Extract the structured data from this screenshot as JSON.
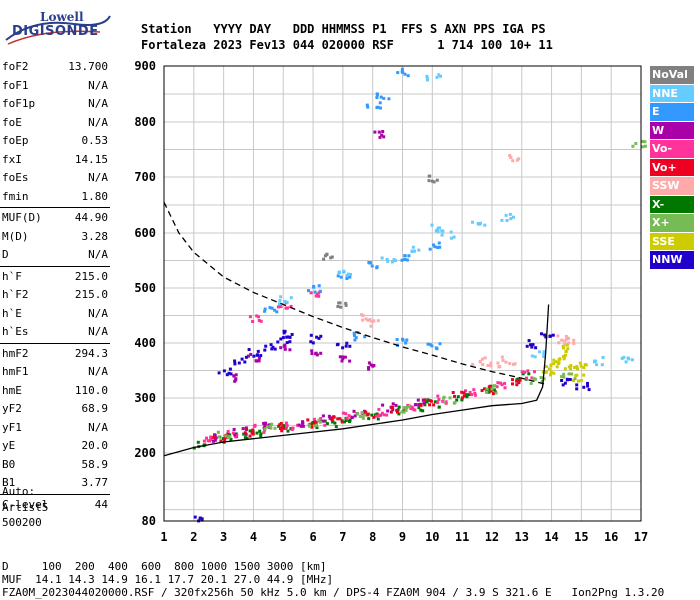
{
  "logo": {
    "line1": "Lowell",
    "line2": "DIGISONDE"
  },
  "header": {
    "line1": "Station   YYYY DAY   DDD HHMMSS P1  FFS S AXN PPS IGA PS",
    "line2": "Fortaleza 2023 Fev13 044 020000 RSF      1 714 100 10+ 11"
  },
  "params": [
    {
      "label": "foF2",
      "value": "13.700"
    },
    {
      "label": "foF1",
      "value": "N/A"
    },
    {
      "label": "foF1p",
      "value": "N/A"
    },
    {
      "label": "foE",
      "value": "N/A"
    },
    {
      "label": "foEp",
      "value": "0.53"
    },
    {
      "label": "fxI",
      "value": "14.15"
    },
    {
      "label": "foEs",
      "value": "N/A"
    },
    {
      "label": "fmin",
      "value": "1.80"
    },
    {
      "label": "MUF(D)",
      "value": "44.90"
    },
    {
      "label": "M(D)",
      "value": "3.28"
    },
    {
      "label": "D",
      "value": "N/A"
    },
    {
      "label": "h`F",
      "value": "215.0"
    },
    {
      "label": "h`F2",
      "value": "215.0"
    },
    {
      "label": "h`E",
      "value": "N/A"
    },
    {
      "label": "h`Es",
      "value": "N/A"
    },
    {
      "label": "hmF2",
      "value": "294.3"
    },
    {
      "label": "hmF1",
      "value": "N/A"
    },
    {
      "label": "hmE",
      "value": "110.0"
    },
    {
      "label": "yF2",
      "value": "68.9"
    },
    {
      "label": "yF1",
      "value": "N/A"
    },
    {
      "label": "yE",
      "value": "20.0"
    },
    {
      "label": "B0",
      "value": "58.9"
    },
    {
      "label": "B1",
      "value": "3.77"
    },
    {
      "label": "C-level",
      "value": "44"
    }
  ],
  "auto": {
    "line1": "Auto:",
    "line2": "Artist5",
    "line3": "500200"
  },
  "legend": [
    {
      "label": "NoVal",
      "color": "#808080"
    },
    {
      "label": "NNE",
      "color": "#66ccff"
    },
    {
      "label": "E",
      "color": "#3399ff"
    },
    {
      "label": "W",
      "color": "#aa00aa"
    },
    {
      "label": "Vo-",
      "color": "#ff3399"
    },
    {
      "label": "Vo+",
      "color": "#ee0022"
    },
    {
      "label": "SSW",
      "color": "#ffaaaa"
    },
    {
      "label": "X-",
      "color": "#007700"
    },
    {
      "label": "X+",
      "color": "#77bb55"
    },
    {
      "label": "SSE",
      "color": "#cccc00"
    },
    {
      "label": "NNW",
      "color": "#2200cc"
    }
  ],
  "footer": {
    "line1": "D     100  200  400  600  800 1000 1500 3000 [km]",
    "line2": "MUF  14.1 14.3 14.9 16.1 17.7 20.1 27.0 44.9 [MHz]",
    "line3": "FZA0M_2023044020000.RSF / 320fx256h 50 kHz 5.0 km / DPS-4 FZA0M 904 / 3.9 S 321.6 E   Ion2Png 1.3.20"
  },
  "chart_data": {
    "type": "scatter",
    "xlim": [
      1,
      17
    ],
    "ylim": [
      80,
      900
    ],
    "x_ticks": [
      "1",
      "2",
      "3",
      "4",
      "5",
      "6",
      "7",
      "8",
      "9",
      "10",
      "11",
      "12",
      "13",
      "14",
      "15",
      "16",
      "17"
    ],
    "y_ticks": [
      "80",
      "200",
      "300",
      "400",
      "500",
      "600",
      "700",
      "800",
      "900"
    ],
    "grid": true,
    "legend_position": "right",
    "series": [
      {
        "name": "X-",
        "color": "#007700",
        "points": [
          [
            2.2,
            218
          ],
          [
            3,
            232
          ],
          [
            4,
            240
          ],
          [
            5,
            248
          ],
          [
            6,
            255
          ],
          [
            7,
            262
          ],
          [
            8,
            270
          ],
          [
            9,
            280
          ],
          [
            10,
            292
          ],
          [
            11,
            305
          ],
          [
            12,
            320
          ],
          [
            13,
            340
          ],
          [
            3.5,
            236
          ],
          [
            6.5,
            258
          ],
          [
            9.5,
            286
          ]
        ]
      },
      {
        "name": "Vo-",
        "color": "#ff3399",
        "points": [
          [
            2.4,
            225
          ],
          [
            3.2,
            238
          ],
          [
            4.2,
            246
          ],
          [
            5.2,
            252
          ],
          [
            6.2,
            260
          ],
          [
            7.2,
            268
          ],
          [
            8.2,
            276
          ],
          [
            9.2,
            288
          ],
          [
            10.2,
            300
          ],
          [
            11.2,
            312
          ],
          [
            12.2,
            326
          ],
          [
            13.2,
            345
          ],
          [
            4,
            445
          ],
          [
            5,
            470
          ],
          [
            6,
            490
          ]
        ]
      },
      {
        "name": "W",
        "color": "#aa00aa",
        "points": [
          [
            2.5,
            230
          ],
          [
            3.5,
            242
          ],
          [
            4.5,
            250
          ],
          [
            5.5,
            258
          ],
          [
            6.5,
            264
          ],
          [
            7.5,
            272
          ],
          [
            8.5,
            285
          ],
          [
            9.5,
            296
          ],
          [
            3.2,
            340
          ],
          [
            4,
            375
          ],
          [
            5,
            395
          ],
          [
            6,
            385
          ],
          [
            7,
            372
          ],
          [
            8,
            360
          ],
          [
            8.2,
            780
          ]
        ]
      },
      {
        "name": "Vo+",
        "color": "#ee0022",
        "points": [
          [
            2.8,
            228
          ],
          [
            3.8,
            240
          ],
          [
            4.8,
            250
          ],
          [
            5.8,
            256
          ],
          [
            6.8,
            264
          ],
          [
            7.8,
            274
          ],
          [
            8.8,
            282
          ],
          [
            9.8,
            294
          ],
          [
            10.8,
            306
          ],
          [
            11.8,
            318
          ],
          [
            12.8,
            334
          ]
        ]
      },
      {
        "name": "E",
        "color": "#3399ff",
        "points": [
          [
            4.5,
            460
          ],
          [
            6,
            500
          ],
          [
            7,
            525
          ],
          [
            8,
            545
          ],
          [
            9,
            560
          ],
          [
            10,
            580
          ],
          [
            8,
            830
          ],
          [
            8.3,
            850
          ],
          [
            9,
            890
          ],
          [
            7.5,
            415
          ],
          [
            9,
            405
          ],
          [
            10,
            395
          ]
        ]
      },
      {
        "name": "NNE",
        "color": "#66ccff",
        "points": [
          [
            5,
            480
          ],
          [
            7,
            530
          ],
          [
            8.5,
            555
          ],
          [
            9.5,
            570
          ],
          [
            10,
            610
          ],
          [
            10.5,
            600
          ],
          [
            11.5,
            620
          ],
          [
            10,
            880
          ],
          [
            12.5,
            630
          ],
          [
            13.5,
            380
          ],
          [
            15.5,
            370
          ],
          [
            16.5,
            370
          ]
        ]
      },
      {
        "name": "NNW",
        "color": "#2200cc",
        "points": [
          [
            3,
            350
          ],
          [
            3.5,
            370
          ],
          [
            4,
            385
          ],
          [
            4.5,
            395
          ],
          [
            5,
            408
          ],
          [
            5.2,
            420
          ],
          [
            6,
            410
          ],
          [
            7,
            400
          ],
          [
            13.2,
            400
          ],
          [
            13.8,
            420
          ],
          [
            14.5,
            330
          ],
          [
            15,
            325
          ],
          [
            2,
            83
          ]
        ]
      },
      {
        "name": "SSE",
        "color": "#cccc00",
        "points": [
          [
            13.8,
            350
          ],
          [
            14,
            360
          ],
          [
            14.2,
            370
          ],
          [
            14.4,
            380
          ],
          [
            14.6,
            355
          ],
          [
            14.8,
            340
          ],
          [
            15,
            365
          ],
          [
            14.3,
            395
          ]
        ]
      },
      {
        "name": "X+",
        "color": "#77bb55",
        "points": [
          [
            3,
            235
          ],
          [
            4.5,
            248
          ],
          [
            6,
            258
          ],
          [
            7.5,
            270
          ],
          [
            9,
            282
          ],
          [
            10.5,
            300
          ],
          [
            12,
            318
          ],
          [
            13.5,
            336
          ],
          [
            14.5,
            345
          ],
          [
            16.9,
            760
          ]
        ]
      },
      {
        "name": "SSW",
        "color": "#ffaaaa",
        "points": [
          [
            7.8,
            450
          ],
          [
            8,
            440
          ],
          [
            11.5,
            370
          ],
          [
            12,
            365
          ],
          [
            12.5,
            370
          ],
          [
            14.3,
            410
          ],
          [
            14.6,
            405
          ],
          [
            12.7,
            735
          ]
        ]
      },
      {
        "name": "NoVal",
        "color": "#808080",
        "points": [
          [
            7,
            470
          ],
          [
            10,
            700
          ],
          [
            6.5,
            560
          ]
        ]
      }
    ],
    "lines": [
      {
        "name": "trace",
        "style": "solid",
        "color": "#000000",
        "points": [
          [
            1,
            195
          ],
          [
            2,
            210
          ],
          [
            3,
            220
          ],
          [
            4,
            226
          ],
          [
            5,
            232
          ],
          [
            6,
            238
          ],
          [
            7,
            244
          ],
          [
            8,
            252
          ],
          [
            9,
            260
          ],
          [
            10,
            270
          ],
          [
            11,
            278
          ],
          [
            12,
            286
          ],
          [
            13,
            290
          ],
          [
            13.5,
            296
          ],
          [
            13.7,
            320
          ],
          [
            13.8,
            380
          ],
          [
            13.9,
            470
          ]
        ]
      },
      {
        "name": "muf",
        "style": "dashed",
        "color": "#000000",
        "points": [
          [
            1,
            655
          ],
          [
            1.5,
            600
          ],
          [
            2,
            565
          ],
          [
            3,
            520
          ],
          [
            4,
            492
          ],
          [
            5,
            470
          ],
          [
            6,
            448
          ],
          [
            7,
            428
          ],
          [
            8,
            410
          ],
          [
            9,
            393
          ],
          [
            10,
            378
          ],
          [
            11,
            362
          ],
          [
            12,
            348
          ],
          [
            13,
            336
          ],
          [
            13.8,
            325
          ]
        ]
      }
    ]
  }
}
